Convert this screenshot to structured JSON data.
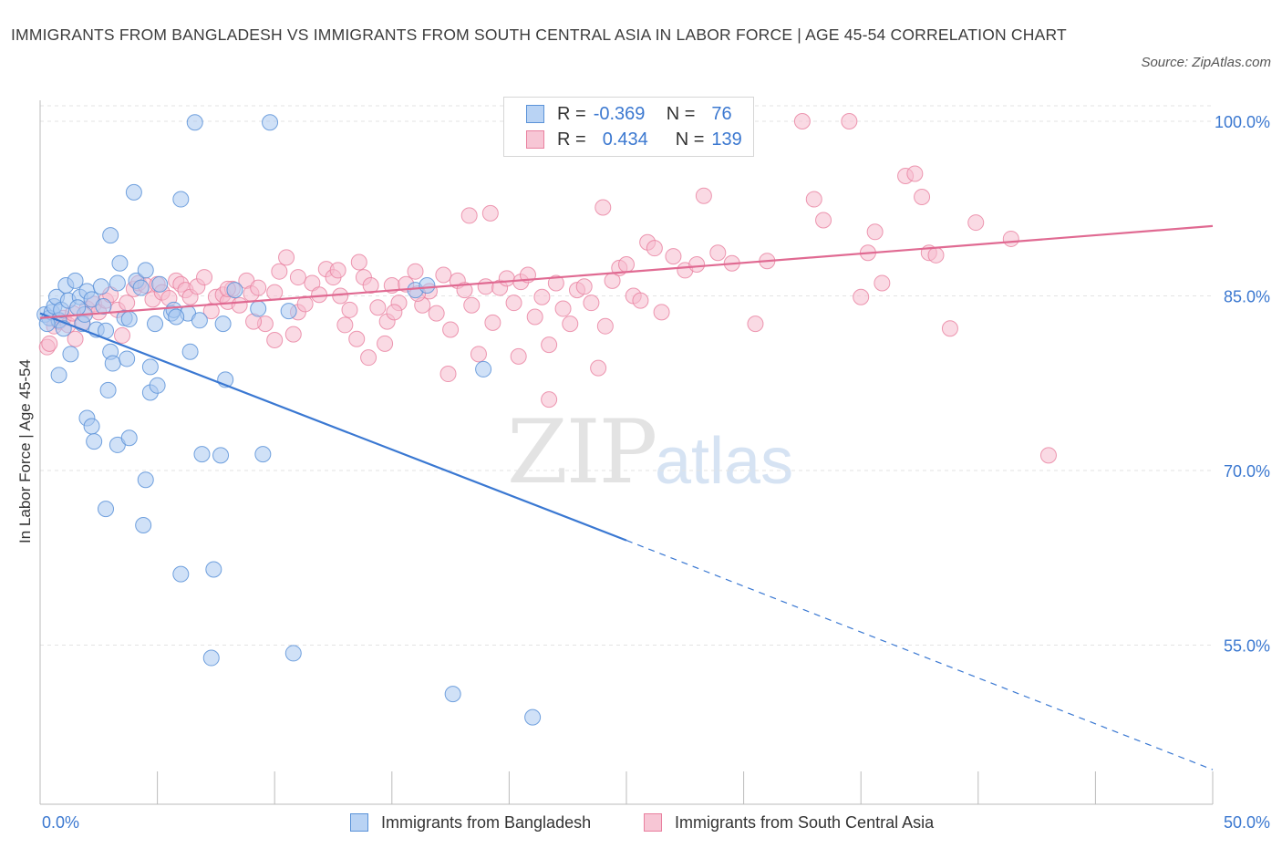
{
  "title": "IMMIGRANTS FROM BANGLADESH VS IMMIGRANTS FROM SOUTH CENTRAL ASIA IN LABOR FORCE | AGE 45-54 CORRELATION CHART",
  "source": "Source: ZipAtlas.com",
  "watermark": {
    "zip": "ZIP",
    "atlas": "atlas"
  },
  "legend": {
    "rows": [
      {
        "r_label": "R =",
        "r_value": "-0.369",
        "n_label": "N =",
        "n_value": "76"
      },
      {
        "r_label": "R =",
        "r_value": "0.434",
        "n_label": "N =",
        "n_value": "139"
      }
    ]
  },
  "bottom_legend": {
    "series1": "Immigrants from Bangladesh",
    "series2": "Immigrants from South Central Asia"
  },
  "axes": {
    "ylabel": "In Labor Force | Age 45-54",
    "x_left_label": "0.0%",
    "x_right_label": "50.0%",
    "y_tick_labels": [
      "100.0%",
      "85.0%",
      "70.0%",
      "55.0%"
    ]
  },
  "colors": {
    "blue_fill": "#a9c8f0",
    "blue_stroke": "#5a92d8",
    "blue_line": "#3a78d2",
    "pink_fill": "#f5bccd",
    "pink_stroke": "#e9809f",
    "pink_line": "#e06a92",
    "tick_label": "#3b78d0",
    "grid": "#e3e3e3"
  },
  "chart_data": {
    "type": "scatter",
    "title": "IMMIGRANTS FROM BANGLADESH VS IMMIGRANTS FROM SOUTH CENTRAL ASIA IN LABOR FORCE | AGE 45-54 CORRELATION CHART",
    "xlabel": "",
    "ylabel": "In Labor Force | Age 45-54",
    "xlim": [
      0,
      50
    ],
    "ylim": [
      41,
      101.5
    ],
    "y_ticks": [
      100,
      85,
      70,
      55
    ],
    "grid": true,
    "legend_placement": "top-center",
    "series": [
      {
        "name": "Immigrants from Bangladesh",
        "R": -0.369,
        "N": 76,
        "trend": {
          "x0": 0,
          "y0": 83.5,
          "x1": 25,
          "y1": 64.0,
          "dashed_to_x": 50,
          "dashed_to_y": 44.3
        },
        "points": [
          [
            0.2,
            83.4
          ],
          [
            0.4,
            83.1
          ],
          [
            0.5,
            83.6
          ],
          [
            0.6,
            84.1
          ],
          [
            0.7,
            84.9
          ],
          [
            0.8,
            82.9
          ],
          [
            0.9,
            83.8
          ],
          [
            1.1,
            85.9
          ],
          [
            1.2,
            84.6
          ],
          [
            1.3,
            80.0
          ],
          [
            1.5,
            86.3
          ],
          [
            1.7,
            84.9
          ],
          [
            1.8,
            82.6
          ],
          [
            1.9,
            83.4
          ],
          [
            2.0,
            85.4
          ],
          [
            2.2,
            84.7
          ],
          [
            2.4,
            82.1
          ],
          [
            2.6,
            85.8
          ],
          [
            2.8,
            82.0
          ],
          [
            3.0,
            80.2
          ],
          [
            3.1,
            79.2
          ],
          [
            3.3,
            86.1
          ],
          [
            3.4,
            87.8
          ],
          [
            3.6,
            83.1
          ],
          [
            3.7,
            79.6
          ],
          [
            4.0,
            93.9
          ],
          [
            4.1,
            86.3
          ],
          [
            4.3,
            85.7
          ],
          [
            4.5,
            87.2
          ],
          [
            4.7,
            78.9
          ],
          [
            4.9,
            82.6
          ],
          [
            5.1,
            86.0
          ],
          [
            5.6,
            83.5
          ],
          [
            5.7,
            83.8
          ],
          [
            6.0,
            93.3
          ],
          [
            6.3,
            83.5
          ],
          [
            6.4,
            80.2
          ],
          [
            6.6,
            99.9
          ],
          [
            6.8,
            82.9
          ],
          [
            7.8,
            82.6
          ],
          [
            7.9,
            77.8
          ],
          [
            8.3,
            85.5
          ],
          [
            9.3,
            83.9
          ],
          [
            9.8,
            99.9
          ],
          [
            10.6,
            83.7
          ],
          [
            16.0,
            85.5
          ],
          [
            16.5,
            85.9
          ],
          [
            18.9,
            78.7
          ],
          [
            0.8,
            78.2
          ],
          [
            2.0,
            74.5
          ],
          [
            2.2,
            73.8
          ],
          [
            2.3,
            72.5
          ],
          [
            2.9,
            76.9
          ],
          [
            3.3,
            72.2
          ],
          [
            3.8,
            72.8
          ],
          [
            4.7,
            76.7
          ],
          [
            5.0,
            77.3
          ],
          [
            3.0,
            90.2
          ],
          [
            6.9,
            71.4
          ],
          [
            7.7,
            71.3
          ],
          [
            9.5,
            71.4
          ],
          [
            4.5,
            69.2
          ],
          [
            2.8,
            66.7
          ],
          [
            4.4,
            65.3
          ],
          [
            6.0,
            61.1
          ],
          [
            7.4,
            61.5
          ],
          [
            7.3,
            53.9
          ],
          [
            10.8,
            54.3
          ],
          [
            17.6,
            50.8
          ],
          [
            21.0,
            48.8
          ],
          [
            1.0,
            82.2
          ],
          [
            2.7,
            84.1
          ],
          [
            3.8,
            83.0
          ],
          [
            5.8,
            83.2
          ],
          [
            0.3,
            82.6
          ],
          [
            1.6,
            84.0
          ]
        ]
      },
      {
        "name": "Immigrants from South Central Asia",
        "R": 0.434,
        "N": 139,
        "trend": {
          "x0": 0,
          "y0": 83.1,
          "x1": 50,
          "y1": 91.0
        },
        "points": [
          [
            0.3,
            80.6
          ],
          [
            0.4,
            80.9
          ],
          [
            0.6,
            82.4
          ],
          [
            0.8,
            82.8
          ],
          [
            1.0,
            83.1
          ],
          [
            1.2,
            82.5
          ],
          [
            1.5,
            81.3
          ],
          [
            1.8,
            82.7
          ],
          [
            2.0,
            83.9
          ],
          [
            2.3,
            84.3
          ],
          [
            2.5,
            83.6
          ],
          [
            2.8,
            84.6
          ],
          [
            3.0,
            85.1
          ],
          [
            3.3,
            83.8
          ],
          [
            3.5,
            81.6
          ],
          [
            3.7,
            84.4
          ],
          [
            4.0,
            85.6
          ],
          [
            4.2,
            86.1
          ],
          [
            4.5,
            85.9
          ],
          [
            4.8,
            84.7
          ],
          [
            5.0,
            86.0
          ],
          [
            5.2,
            85.3
          ],
          [
            5.5,
            84.8
          ],
          [
            5.8,
            86.3
          ],
          [
            6.0,
            86.0
          ],
          [
            6.2,
            85.5
          ],
          [
            6.4,
            84.9
          ],
          [
            6.7,
            85.8
          ],
          [
            7.0,
            86.6
          ],
          [
            7.3,
            83.7
          ],
          [
            7.5,
            84.9
          ],
          [
            7.8,
            85.1
          ],
          [
            8.0,
            84.5
          ],
          [
            8.2,
            85.6
          ],
          [
            8.5,
            84.2
          ],
          [
            8.8,
            86.3
          ],
          [
            9.0,
            85.2
          ],
          [
            9.3,
            85.7
          ],
          [
            9.6,
            82.6
          ],
          [
            10.0,
            85.3
          ],
          [
            10.2,
            87.1
          ],
          [
            10.5,
            88.3
          ],
          [
            10.8,
            81.7
          ],
          [
            11.0,
            83.6
          ],
          [
            11.3,
            84.3
          ],
          [
            11.6,
            86.1
          ],
          [
            11.9,
            85.1
          ],
          [
            12.2,
            87.3
          ],
          [
            12.5,
            86.6
          ],
          [
            12.8,
            85.0
          ],
          [
            13.0,
            82.5
          ],
          [
            13.2,
            83.8
          ],
          [
            13.5,
            81.3
          ],
          [
            13.8,
            86.6
          ],
          [
            14.1,
            85.9
          ],
          [
            14.4,
            84.0
          ],
          [
            14.7,
            80.9
          ],
          [
            15.0,
            85.9
          ],
          [
            15.3,
            84.4
          ],
          [
            15.6,
            86.0
          ],
          [
            16.0,
            87.1
          ],
          [
            16.3,
            84.2
          ],
          [
            16.6,
            85.4
          ],
          [
            16.9,
            83.5
          ],
          [
            17.2,
            86.8
          ],
          [
            17.5,
            82.1
          ],
          [
            17.8,
            86.3
          ],
          [
            18.1,
            85.5
          ],
          [
            18.4,
            84.2
          ],
          [
            18.7,
            80.0
          ],
          [
            19.0,
            85.8
          ],
          [
            19.3,
            82.7
          ],
          [
            19.6,
            85.7
          ],
          [
            19.9,
            86.5
          ],
          [
            20.2,
            84.4
          ],
          [
            20.5,
            86.2
          ],
          [
            20.8,
            86.8
          ],
          [
            21.1,
            83.2
          ],
          [
            21.4,
            84.9
          ],
          [
            21.7,
            80.8
          ],
          [
            22.0,
            86.1
          ],
          [
            22.3,
            83.9
          ],
          [
            22.6,
            82.6
          ],
          [
            22.9,
            85.5
          ],
          [
            23.2,
            85.8
          ],
          [
            23.5,
            84.4
          ],
          [
            23.8,
            78.8
          ],
          [
            24.1,
            82.4
          ],
          [
            24.4,
            86.3
          ],
          [
            24.7,
            87.4
          ],
          [
            25.0,
            87.7
          ],
          [
            25.3,
            85.0
          ],
          [
            25.6,
            84.6
          ],
          [
            25.9,
            89.6
          ],
          [
            26.2,
            89.1
          ],
          [
            26.5,
            83.6
          ],
          [
            27.0,
            88.4
          ],
          [
            27.5,
            87.2
          ],
          [
            28.0,
            87.7
          ],
          [
            28.3,
            93.6
          ],
          [
            28.9,
            88.7
          ],
          [
            29.5,
            87.8
          ],
          [
            30.5,
            82.6
          ],
          [
            31.0,
            88.0
          ],
          [
            33.0,
            93.3
          ],
          [
            33.4,
            91.5
          ],
          [
            35.0,
            84.9
          ],
          [
            35.3,
            88.7
          ],
          [
            35.6,
            90.5
          ],
          [
            35.9,
            86.1
          ],
          [
            36.9,
            95.3
          ],
          [
            37.3,
            95.5
          ],
          [
            37.6,
            93.5
          ],
          [
            37.9,
            88.7
          ],
          [
            38.2,
            88.5
          ],
          [
            38.8,
            82.2
          ],
          [
            39.9,
            91.3
          ],
          [
            41.4,
            89.9
          ],
          [
            43.0,
            71.3
          ],
          [
            34.5,
            100.0
          ],
          [
            32.5,
            100.0
          ],
          [
            29.2,
            99.9
          ],
          [
            24.0,
            92.6
          ],
          [
            19.2,
            92.1
          ],
          [
            18.3,
            91.9
          ],
          [
            12.7,
            87.2
          ],
          [
            11.0,
            86.6
          ],
          [
            16.1,
            85.2
          ],
          [
            14.0,
            79.7
          ],
          [
            10.0,
            81.2
          ],
          [
            14.8,
            82.8
          ],
          [
            20.4,
            79.8
          ],
          [
            17.4,
            78.3
          ],
          [
            21.7,
            76.1
          ],
          [
            15.1,
            83.6
          ],
          [
            13.6,
            87.9
          ],
          [
            9.1,
            82.8
          ],
          [
            8.0,
            85.6
          ],
          [
            1.4,
            83.5
          ]
        ]
      }
    ]
  }
}
